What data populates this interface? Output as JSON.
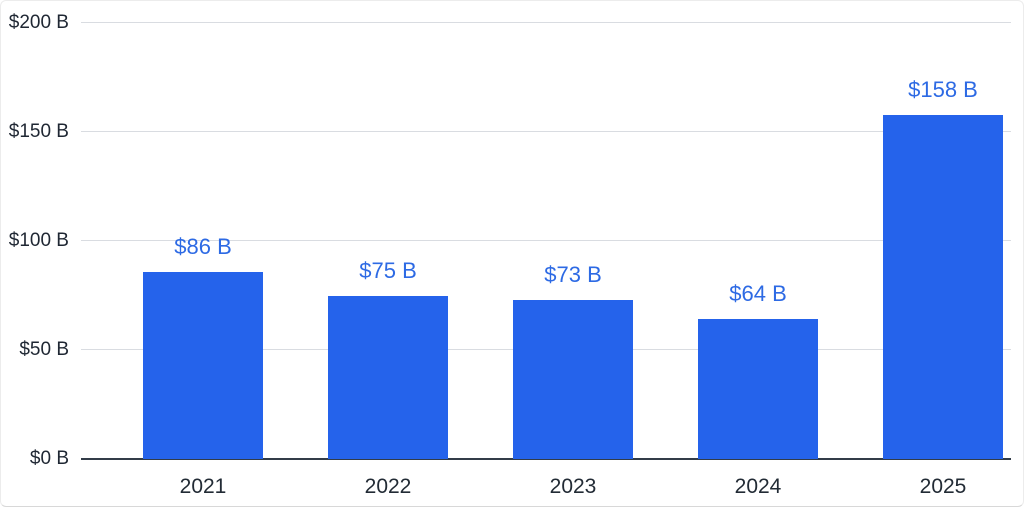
{
  "chart_data": {
    "type": "bar",
    "title": "",
    "xlabel": "",
    "ylabel": "",
    "categories": [
      "2021",
      "2022",
      "2023",
      "2024",
      "2025"
    ],
    "values": [
      86,
      75,
      73,
      64,
      158
    ],
    "bar_labels": [
      "$86 B",
      "$75 B",
      "$73 B",
      "$64 B",
      "$158 B"
    ],
    "ylim": [
      0,
      200
    ],
    "yticks": [
      {
        "value": 0,
        "label": "$0 B"
      },
      {
        "value": 50,
        "label": "$50 B"
      },
      {
        "value": 100,
        "label": "$100 B"
      },
      {
        "value": 150,
        "label": "$150 B"
      },
      {
        "value": 200,
        "label": "$200 B"
      }
    ],
    "grid": "horizontal",
    "legend": "none",
    "colors": {
      "bar": "#2563eb",
      "value_label": "#2d6ae4",
      "axis_line": "#323c48",
      "gridline": "#d9dce1",
      "tick_text": "#1f2733"
    }
  }
}
